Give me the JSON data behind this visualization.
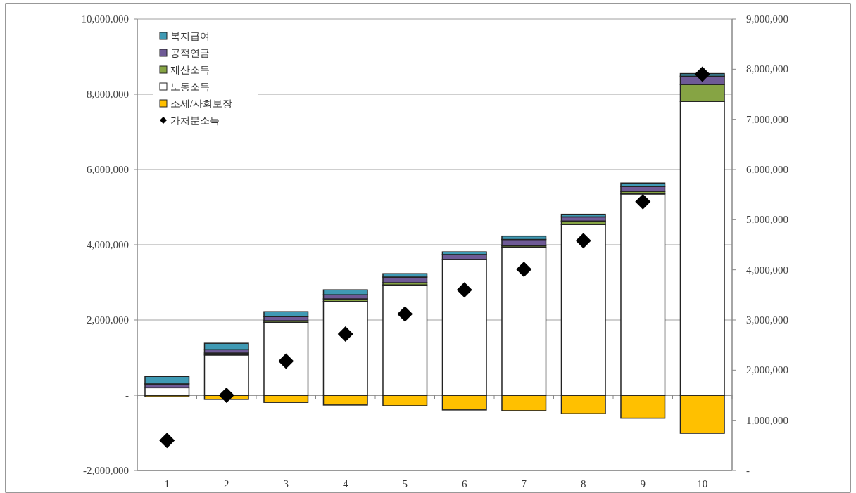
{
  "chart_data": {
    "type": "bar",
    "stacked": true,
    "categories": [
      "1",
      "2",
      "3",
      "4",
      "5",
      "6",
      "7",
      "8",
      "9",
      "10"
    ],
    "series": [
      {
        "name": "조세/사회보장",
        "color": "#ffc000",
        "values": [
          -40000,
          -110000,
          -190000,
          -260000,
          -280000,
          -390000,
          -410000,
          -490000,
          -610000,
          -1010000
        ]
      },
      {
        "name": "노동소득",
        "color": "#ffffff",
        "values": [
          200000,
          1070000,
          1940000,
          2490000,
          2930000,
          3610000,
          3930000,
          4540000,
          5350000,
          7810000
        ]
      },
      {
        "name": "재산소득",
        "color": "#86a444",
        "values": [
          0,
          50000,
          40000,
          70000,
          60000,
          null,
          40000,
          90000,
          70000,
          450000
        ]
      },
      {
        "name": "공적연금",
        "color": "#6e5a96",
        "values": [
          100000,
          90000,
          110000,
          110000,
          150000,
          130000,
          170000,
          110000,
          130000,
          220000
        ]
      },
      {
        "name": "복지급여",
        "color": "#3f9ab4",
        "values": [
          200000,
          170000,
          130000,
          130000,
          90000,
          70000,
          90000,
          70000,
          90000,
          70000
        ]
      },
      {
        "name": "가처분소득",
        "type": "scatter",
        "axis": "y2",
        "marker": "diamond",
        "color": "#000000",
        "values": [
          600000,
          1500000,
          2180000,
          2720000,
          3120000,
          3600000,
          4010000,
          4580000,
          5360000,
          7900000
        ]
      }
    ],
    "ylim": [
      -2000000,
      10000000
    ],
    "yticks": [
      {
        "value": -2000000,
        "label": "-2,000,000"
      },
      {
        "value": 0,
        "label": "-"
      },
      {
        "value": 2000000,
        "label": "2,000,000"
      },
      {
        "value": 4000000,
        "label": "4,000,000"
      },
      {
        "value": 6000000,
        "label": "6,000,000"
      },
      {
        "value": 8000000,
        "label": "8,000,000"
      },
      {
        "value": 10000000,
        "label": "10,000,000"
      }
    ],
    "y2lim": [
      0,
      9000000
    ],
    "y2ticks": [
      {
        "value": 0,
        "label": "-"
      },
      {
        "value": 1000000,
        "label": "1,000,000"
      },
      {
        "value": 2000000,
        "label": "2,000,000"
      },
      {
        "value": 3000000,
        "label": "3,000,000"
      },
      {
        "value": 4000000,
        "label": "4,000,000"
      },
      {
        "value": 5000000,
        "label": "5,000,000"
      },
      {
        "value": 6000000,
        "label": "6,000,000"
      },
      {
        "value": 7000000,
        "label": "7,000,000"
      },
      {
        "value": 8000000,
        "label": "8,000,000"
      },
      {
        "value": 9000000,
        "label": "9,000,000"
      }
    ],
    "grid": "y",
    "legend": "top left"
  }
}
